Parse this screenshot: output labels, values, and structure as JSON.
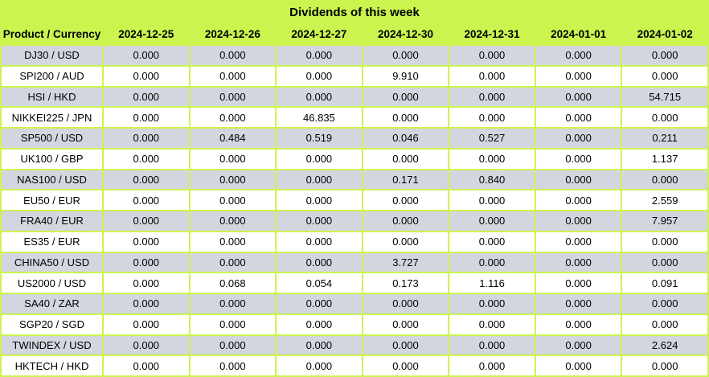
{
  "title": "Dividends of this week",
  "colors": {
    "green": "#cbf44f",
    "gray_row": "#d3d6de",
    "white_row": "#ffffff",
    "text": "#000000"
  },
  "chart_data": {
    "type": "table",
    "title": "Dividends of this week",
    "header": {
      "product_column": "Product / Currency",
      "date_columns": [
        "2024-12-25",
        "2024-12-26",
        "2024-12-27",
        "2024-12-30",
        "2024-12-31",
        "2024-01-01",
        "2024-01-02"
      ]
    },
    "rows": [
      {
        "product": "DJ30 / USD",
        "values": [
          "0.000",
          "0.000",
          "0.000",
          "0.000",
          "0.000",
          "0.000",
          "0.000"
        ],
        "bold_columns": []
      },
      {
        "product": "SPI200 / AUD",
        "values": [
          "0.000",
          "0.000",
          "0.000",
          "9.910",
          "0.000",
          "0.000",
          "0.000"
        ],
        "bold_columns": [
          3
        ]
      },
      {
        "product": "HSI / HKD",
        "values": [
          "0.000",
          "0.000",
          "0.000",
          "0.000",
          "0.000",
          "0.000",
          "54.715"
        ],
        "bold_columns": []
      },
      {
        "product": "NIKKEI225 / JPN",
        "values": [
          "0.000",
          "0.000",
          "46.835",
          "0.000",
          "0.000",
          "0.000",
          "0.000"
        ],
        "bold_columns": []
      },
      {
        "product": "SP500 / USD",
        "values": [
          "0.000",
          "0.484",
          "0.519",
          "0.046",
          "0.527",
          "0.000",
          "0.211"
        ],
        "bold_columns": []
      },
      {
        "product": "UK100 / GBP",
        "values": [
          "0.000",
          "0.000",
          "0.000",
          "0.000",
          "0.000",
          "0.000",
          "1.137"
        ],
        "bold_columns": []
      },
      {
        "product": "NAS100 / USD",
        "values": [
          "0.000",
          "0.000",
          "0.000",
          "0.171",
          "0.840",
          "0.000",
          "0.000"
        ],
        "bold_columns": []
      },
      {
        "product": "EU50 / EUR",
        "values": [
          "0.000",
          "0.000",
          "0.000",
          "0.000",
          "0.000",
          "0.000",
          "2.559"
        ],
        "bold_columns": []
      },
      {
        "product": "FRA40 / EUR",
        "values": [
          "0.000",
          "0.000",
          "0.000",
          "0.000",
          "0.000",
          "0.000",
          "7.957"
        ],
        "bold_columns": []
      },
      {
        "product": "ES35 / EUR",
        "values": [
          "0.000",
          "0.000",
          "0.000",
          "0.000",
          "0.000",
          "0.000",
          "0.000"
        ],
        "bold_columns": []
      },
      {
        "product": "CHINA50 / USD",
        "values": [
          "0.000",
          "0.000",
          "0.000",
          "3.727",
          "0.000",
          "0.000",
          "0.000"
        ],
        "bold_columns": [
          3
        ]
      },
      {
        "product": "US2000 / USD",
        "values": [
          "0.000",
          "0.068",
          "0.054",
          "0.173",
          "1.116",
          "0.000",
          "0.091"
        ],
        "bold_columns": []
      },
      {
        "product": "SA40 / ZAR",
        "values": [
          "0.000",
          "0.000",
          "0.000",
          "0.000",
          "0.000",
          "0.000",
          "0.000"
        ],
        "bold_columns": []
      },
      {
        "product": "SGP20 / SGD",
        "values": [
          "0.000",
          "0.000",
          "0.000",
          "0.000",
          "0.000",
          "0.000",
          "0.000"
        ],
        "bold_columns": []
      },
      {
        "product": "TWINDEX / USD",
        "values": [
          "0.000",
          "0.000",
          "0.000",
          "0.000",
          "0.000",
          "0.000",
          "2.624"
        ],
        "bold_columns": []
      },
      {
        "product": "HKTECH / HKD",
        "values": [
          "0.000",
          "0.000",
          "0.000",
          "0.000",
          "0.000",
          "0.000",
          "0.000"
        ],
        "bold_columns": []
      }
    ]
  }
}
